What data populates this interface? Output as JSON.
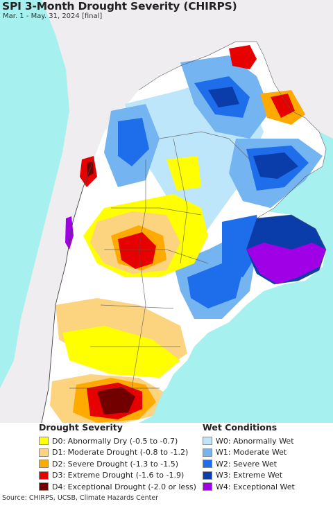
{
  "header": {
    "title": "SPI 3-Month Drought Severity (CHIRPS)",
    "subtitle": "Mar. 1 - May. 31, 2024 [final]"
  },
  "legend_drought": {
    "heading": "Drought Severity",
    "items": [
      {
        "label": "D0: Abnormally Dry (-0.5 to -0.7)",
        "color": "#ffff00"
      },
      {
        "label": "D1: Moderate Drought (-0.8 to -1.2)",
        "color": "#fcd37f"
      },
      {
        "label": "D2: Severe Drought (-1.3 to -1.5)",
        "color": "#ffaa00"
      },
      {
        "label": "D3: Extreme Drought (-1.6 to -1.9)",
        "color": "#e60000"
      },
      {
        "label": "D4: Exceptional Drought (-2.0 or less)",
        "color": "#730000"
      }
    ]
  },
  "legend_wet": {
    "heading": "Wet Conditions",
    "items": [
      {
        "label": "W0: Abnormally Wet",
        "color": "#bde6fa"
      },
      {
        "label": "W1: Moderate Wet",
        "color": "#74b4f0"
      },
      {
        "label": "W2: Severe Wet",
        "color": "#1e6eeb"
      },
      {
        "label": "W3: Extreme Wet",
        "color": "#0a3caa"
      },
      {
        "label": "W4: Exceptional Wet",
        "color": "#a000e6"
      }
    ]
  },
  "map": {
    "ocean_color": "#a6f0ef",
    "land_neutral_color": "#ffffff",
    "outside_land_color": "#efedf0",
    "border_color": "#555555"
  },
  "footer": {
    "source": "Source: CHIRPS, UCSB, Climate Hazards Center"
  }
}
